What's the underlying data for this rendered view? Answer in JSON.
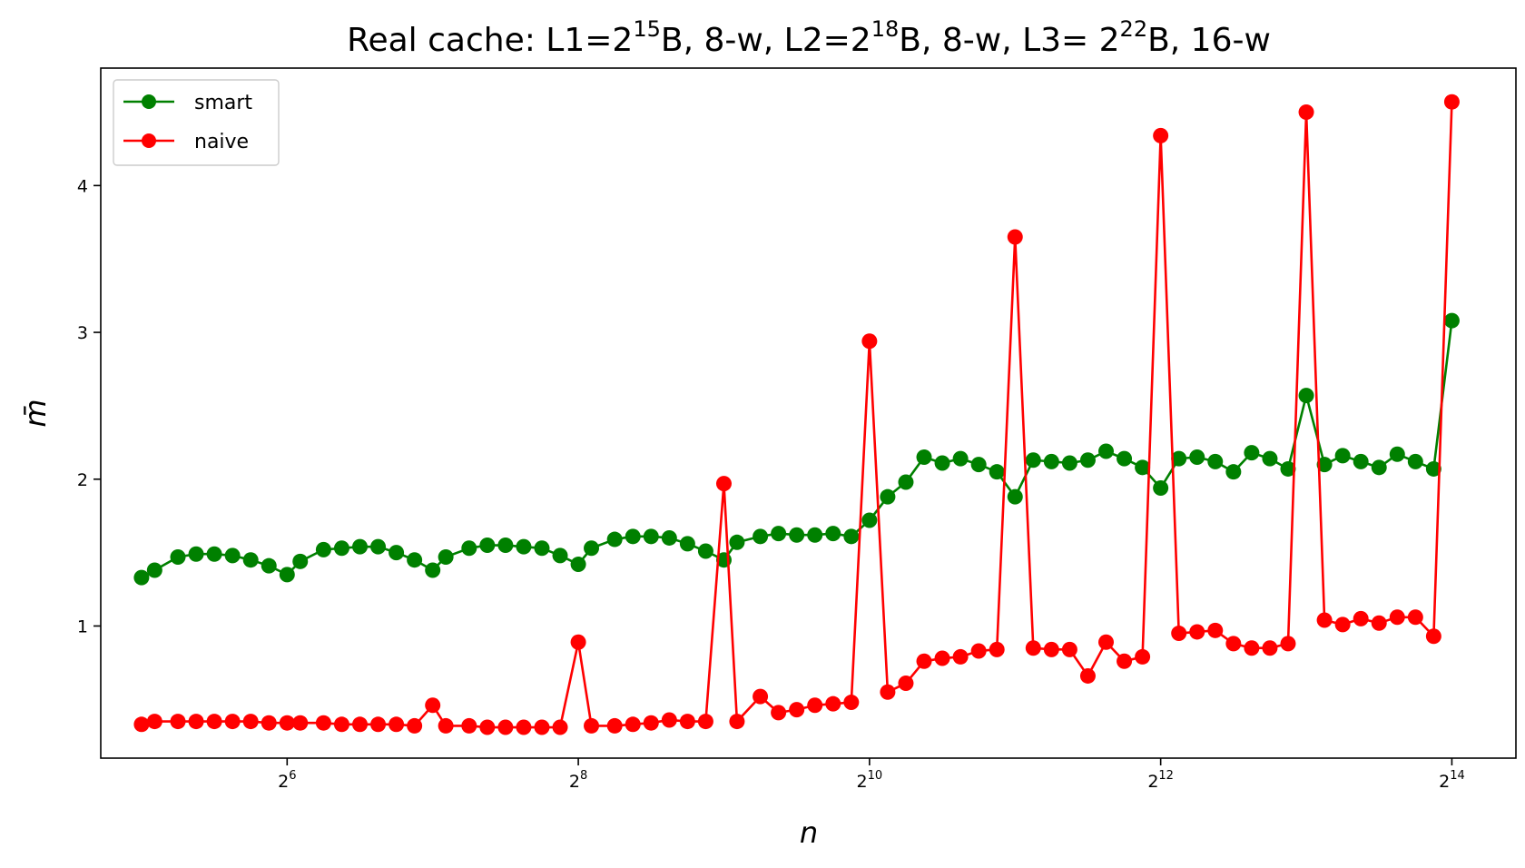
{
  "chart_data": {
    "type": "line",
    "title": {
      "prefix": "Real cache: L1=2",
      "sup1": "15",
      "mid1": "B, 8-w, L2=2",
      "sup2": "18",
      "mid2": "B, 8-w, L3= 2",
      "sup3": "22",
      "suffix": "B, 16-w"
    },
    "xlabel": "n",
    "ylabel": "m̄",
    "x_scale": "log2",
    "xlim_log2": [
      4.72,
      14.44
    ],
    "ylim": [
      0.1,
      4.8
    ],
    "x_ticks": [
      {
        "base": "2",
        "exp": "6",
        "log2": 6
      },
      {
        "base": "2",
        "exp": "8",
        "log2": 8
      },
      {
        "base": "2",
        "exp": "10",
        "log2": 10
      },
      {
        "base": "2",
        "exp": "12",
        "log2": 12
      },
      {
        "base": "2",
        "exp": "14",
        "log2": 14
      }
    ],
    "y_ticks": [
      {
        "label": "1",
        "value": 1
      },
      {
        "label": "2",
        "value": 2
      },
      {
        "label": "3",
        "value": 3
      },
      {
        "label": "4",
        "value": 4
      }
    ],
    "grid": false,
    "legend": "top-left",
    "x_log2": [
      5.0,
      5.09,
      5.25,
      5.375,
      5.5,
      5.625,
      5.75,
      5.875,
      6.0,
      6.09,
      6.25,
      6.375,
      6.5,
      6.625,
      6.75,
      6.875,
      7.0,
      7.09,
      7.25,
      7.375,
      7.5,
      7.625,
      7.75,
      7.875,
      8.0,
      8.09,
      8.25,
      8.375,
      8.5,
      8.625,
      8.75,
      8.875,
      9.0,
      9.09,
      9.25,
      9.375,
      9.5,
      9.625,
      9.75,
      9.875,
      10.0,
      10.125,
      10.25,
      10.375,
      10.5,
      10.625,
      10.75,
      10.875,
      11.0,
      11.125,
      11.25,
      11.375,
      11.5,
      11.625,
      11.75,
      11.875,
      12.0,
      12.125,
      12.25,
      12.375,
      12.5,
      12.625,
      12.75,
      12.875,
      13.0,
      13.125,
      13.25,
      13.375,
      13.5,
      13.625,
      13.75,
      13.875,
      14.0
    ],
    "series": [
      {
        "name": "smart",
        "color": "#008000",
        "values": [
          1.33,
          1.38,
          1.47,
          1.49,
          1.49,
          1.48,
          1.45,
          1.41,
          1.35,
          1.44,
          1.52,
          1.53,
          1.54,
          1.54,
          1.5,
          1.45,
          1.38,
          1.47,
          1.53,
          1.55,
          1.55,
          1.54,
          1.53,
          1.48,
          1.42,
          1.53,
          1.59,
          1.61,
          1.61,
          1.6,
          1.56,
          1.51,
          1.45,
          1.57,
          1.61,
          1.63,
          1.62,
          1.62,
          1.63,
          1.61,
          1.72,
          1.88,
          1.98,
          2.15,
          2.11,
          2.14,
          2.1,
          2.05,
          1.88,
          2.13,
          2.12,
          2.11,
          2.13,
          2.19,
          2.14,
          2.08,
          1.94,
          2.14,
          2.15,
          2.12,
          2.05,
          2.18,
          2.14,
          2.07,
          2.57,
          2.1,
          2.16,
          2.12,
          2.08,
          2.17,
          2.12,
          2.07,
          3.08
        ]
      },
      {
        "name": "naive",
        "color": "#ff0000",
        "values": [
          0.33,
          0.35,
          0.35,
          0.35,
          0.35,
          0.35,
          0.35,
          0.34,
          0.34,
          0.34,
          0.34,
          0.33,
          0.33,
          0.33,
          0.33,
          0.32,
          0.46,
          0.32,
          0.32,
          0.31,
          0.31,
          0.31,
          0.31,
          0.31,
          0.89,
          0.32,
          0.32,
          0.33,
          0.34,
          0.36,
          0.35,
          0.35,
          1.97,
          0.35,
          0.52,
          0.41,
          0.43,
          0.46,
          0.47,
          0.48,
          2.94,
          0.55,
          0.61,
          0.76,
          0.78,
          0.79,
          0.83,
          0.84,
          3.65,
          0.85,
          0.84,
          0.84,
          0.66,
          0.89,
          0.76,
          0.79,
          4.34,
          0.95,
          0.96,
          0.97,
          0.88,
          0.85,
          0.85,
          0.88,
          4.5,
          1.04,
          1.01,
          1.05,
          1.02,
          1.06,
          1.06,
          0.93,
          4.57
        ]
      }
    ]
  }
}
